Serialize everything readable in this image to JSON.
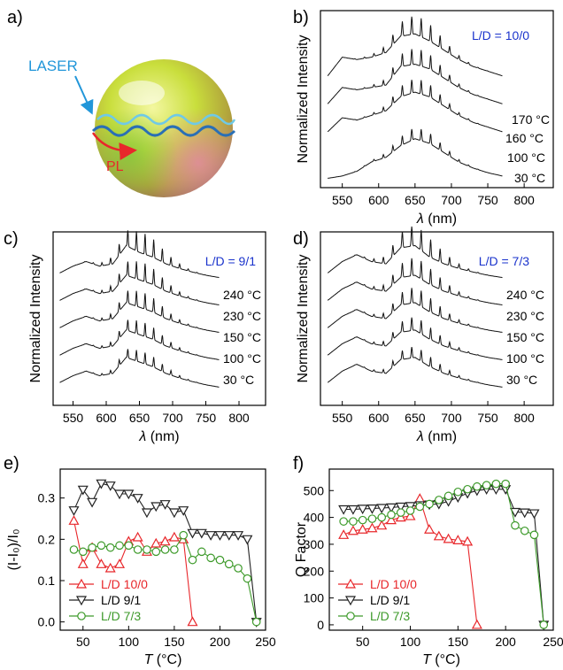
{
  "panels": {
    "a": {
      "label": "a)",
      "laser_text": "LASER",
      "pl_text": "PL"
    },
    "b": {
      "label": "b)",
      "note": "L/D = 10/0",
      "ylabel": "Normalized Intensity",
      "xlabel_sym": "λ",
      "xlabel_unit": " (nm)",
      "xticks": [
        "550",
        "600",
        "650",
        "700",
        "750",
        "800"
      ],
      "temps": [
        "170 °C",
        "160 °C",
        "100 °C",
        "30 °C"
      ]
    },
    "c": {
      "label": "c)",
      "note": "L/D = 9/1",
      "ylabel": "Normalized Intensity",
      "xlabel_sym": "λ",
      "xlabel_unit": " (nm)",
      "xticks": [
        "550",
        "600",
        "650",
        "700",
        "750",
        "800"
      ],
      "temps": [
        "240 °C",
        "230 °C",
        "150 °C",
        "100 °C",
        "30 °C"
      ]
    },
    "d": {
      "label": "d)",
      "note": "L/D = 7/3",
      "ylabel": "Normalized Intensity",
      "xlabel_sym": "λ",
      "xlabel_unit": " (nm)",
      "xticks": [
        "550",
        "600",
        "650",
        "700",
        "750",
        "800"
      ],
      "temps": [
        "240 °C",
        "230 °C",
        "150 °C",
        "100 °C",
        "30 °C"
      ]
    },
    "e": {
      "label": "e)",
      "ylabel": "(I-I₀)/I₀",
      "xlabel_sym": "T",
      "xlabel_unit": " (°C)",
      "xticks": [
        "50",
        "100",
        "150",
        "200",
        "250"
      ],
      "yticks": [
        "0.0",
        "0.1",
        "0.2",
        "0.3"
      ],
      "legend": [
        "L/D 10/0",
        "L/D 9/1",
        "L/D 7/3"
      ]
    },
    "f": {
      "label": "f)",
      "ylabel": "Q Factor",
      "xlabel_sym": "T",
      "xlabel_unit": " (°C)",
      "xticks": [
        "50",
        "100",
        "150",
        "200",
        "250"
      ],
      "yticks": [
        "0",
        "100",
        "200",
        "300",
        "400",
        "500"
      ],
      "legend": [
        "L/D 10/0",
        "L/D 9/1",
        "L/D 7/3"
      ]
    }
  },
  "colors": {
    "note": "#1a33cc",
    "red": "#e8272b",
    "black": "#222222",
    "green": "#3d9a2a",
    "laser": "#2196d9"
  },
  "chart_data": [
    {
      "type": "line",
      "panel": "b",
      "xlabel": "λ (nm)",
      "ylabel": "Normalized Intensity",
      "xlim": [
        520,
        840
      ],
      "series": [
        {
          "name": "30 °C",
          "x": [
            530,
            550,
            570,
            590,
            610,
            630,
            650,
            670,
            690,
            710,
            730,
            750,
            770
          ],
          "y": [
            0.0,
            0.05,
            0.15,
            0.35,
            0.45,
            0.7,
            0.85,
            0.75,
            0.55,
            0.35,
            0.22,
            0.12,
            0.05
          ]
        },
        {
          "name": "100 °C",
          "x": [
            530,
            550,
            570,
            590,
            610,
            630,
            650,
            670,
            690,
            710,
            730,
            750,
            770
          ],
          "y": [
            1.0,
            1.3,
            1.25,
            1.35,
            1.45,
            1.75,
            1.85,
            1.75,
            1.55,
            1.35,
            1.2,
            1.1,
            1.0
          ]
        },
        {
          "name": "160 °C",
          "x": [
            530,
            550,
            570,
            590,
            610,
            630,
            650,
            670,
            690,
            710,
            730,
            750,
            770
          ],
          "y": [
            1.6,
            1.95,
            1.9,
            1.95,
            2.0,
            2.4,
            2.45,
            2.35,
            2.15,
            1.95,
            1.8,
            1.7,
            1.6
          ]
        },
        {
          "name": "170 °C",
          "x": [
            530,
            550,
            570,
            590,
            610,
            630,
            650,
            670,
            690,
            710,
            730,
            750,
            770
          ],
          "y": [
            2.2,
            2.6,
            2.55,
            2.6,
            2.7,
            3.05,
            3.1,
            2.95,
            2.75,
            2.55,
            2.4,
            2.3,
            2.2
          ]
        }
      ]
    },
    {
      "type": "line",
      "panel": "c",
      "xlabel": "λ (nm)",
      "ylabel": "Normalized Intensity",
      "xlim": [
        520,
        840
      ],
      "series": [
        {
          "name": "30 °C",
          "x": [
            530,
            550,
            570,
            590,
            610,
            630,
            650,
            670,
            690,
            710,
            730,
            750,
            770
          ],
          "y": [
            0.3,
            0.45,
            0.55,
            0.45,
            0.5,
            0.85,
            0.75,
            0.65,
            0.5,
            0.4,
            0.32,
            0.25,
            0.2
          ]
        },
        {
          "name": "100 °C",
          "x": [
            530,
            550,
            570,
            590,
            610,
            630,
            650,
            670,
            690,
            710,
            730,
            750,
            770
          ],
          "y": [
            0.9,
            1.05,
            1.15,
            1.05,
            1.1,
            1.45,
            1.35,
            1.25,
            1.1,
            1.0,
            0.92,
            0.85,
            0.8
          ]
        },
        {
          "name": "150 °C",
          "x": [
            530,
            550,
            570,
            590,
            610,
            630,
            650,
            670,
            690,
            710,
            730,
            750,
            770
          ],
          "y": [
            1.5,
            1.65,
            1.75,
            1.65,
            1.7,
            2.05,
            1.95,
            1.85,
            1.7,
            1.6,
            1.52,
            1.45,
            1.4
          ]
        },
        {
          "name": "230 °C",
          "x": [
            530,
            550,
            570,
            590,
            610,
            630,
            650,
            670,
            690,
            710,
            730,
            750,
            770
          ],
          "y": [
            2.1,
            2.25,
            2.35,
            2.25,
            2.3,
            2.65,
            2.55,
            2.45,
            2.3,
            2.2,
            2.12,
            2.05,
            2.0
          ]
        },
        {
          "name": "240 °C",
          "x": [
            530,
            550,
            570,
            590,
            610,
            630,
            650,
            670,
            690,
            710,
            730,
            750,
            770
          ],
          "y": [
            2.7,
            2.85,
            2.95,
            2.85,
            2.9,
            3.3,
            3.15,
            3.05,
            2.9,
            2.8,
            2.72,
            2.65,
            2.6
          ]
        }
      ]
    },
    {
      "type": "line",
      "panel": "d",
      "xlabel": "λ (nm)",
      "ylabel": "Normalized Intensity",
      "xlim": [
        520,
        840
      ],
      "series": [
        {
          "name": "30 °C",
          "x": [
            530,
            550,
            570,
            590,
            610,
            630,
            650,
            670,
            690,
            710,
            730,
            750,
            770
          ],
          "y": [
            0.3,
            0.55,
            0.7,
            0.55,
            0.5,
            0.8,
            0.85,
            0.65,
            0.5,
            0.4,
            0.32,
            0.25,
            0.2
          ]
        },
        {
          "name": "100 °C",
          "x": [
            530,
            550,
            570,
            590,
            610,
            630,
            650,
            670,
            690,
            710,
            730,
            750,
            770
          ],
          "y": [
            0.9,
            1.15,
            1.3,
            1.15,
            1.1,
            1.4,
            1.45,
            1.25,
            1.1,
            1.0,
            0.92,
            0.85,
            0.8
          ]
        },
        {
          "name": "150 °C",
          "x": [
            530,
            550,
            570,
            590,
            610,
            630,
            650,
            670,
            690,
            710,
            730,
            750,
            770
          ],
          "y": [
            1.5,
            1.75,
            1.9,
            1.75,
            1.7,
            2.0,
            2.05,
            1.85,
            1.7,
            1.6,
            1.52,
            1.45,
            1.4
          ]
        },
        {
          "name": "230 °C",
          "x": [
            530,
            550,
            570,
            590,
            610,
            630,
            650,
            670,
            690,
            710,
            730,
            750,
            770
          ],
          "y": [
            2.1,
            2.35,
            2.5,
            2.35,
            2.3,
            2.6,
            2.65,
            2.45,
            2.3,
            2.2,
            2.12,
            2.05,
            2.0
          ]
        },
        {
          "name": "240 °C",
          "x": [
            530,
            550,
            570,
            590,
            610,
            630,
            650,
            670,
            690,
            710,
            730,
            750,
            770
          ],
          "y": [
            2.7,
            2.95,
            3.1,
            2.95,
            2.9,
            3.25,
            3.3,
            3.05,
            2.9,
            2.8,
            2.72,
            2.65,
            2.6
          ]
        }
      ]
    },
    {
      "type": "scatter",
      "panel": "e",
      "xlabel": "T (°C)",
      "ylabel": "(I-I₀)/I₀",
      "xlim": [
        25,
        250
      ],
      "ylim": [
        -0.02,
        0.37
      ],
      "legend_position": "bottom-left",
      "series": [
        {
          "name": "L/D 10/0",
          "marker": "triangle-up",
          "x": [
            40,
            50,
            60,
            70,
            80,
            90,
            100,
            110,
            120,
            130,
            140,
            150,
            160,
            170
          ],
          "y": [
            0.245,
            0.14,
            0.18,
            0.14,
            0.13,
            0.14,
            0.195,
            0.205,
            0.17,
            0.19,
            0.195,
            0.205,
            0.2,
            0.0
          ]
        },
        {
          "name": "L/D 9/1",
          "marker": "triangle-down",
          "x": [
            40,
            50,
            60,
            70,
            80,
            90,
            100,
            110,
            120,
            130,
            140,
            150,
            160,
            170,
            180,
            190,
            200,
            210,
            220,
            230,
            240
          ],
          "y": [
            0.27,
            0.32,
            0.29,
            0.335,
            0.33,
            0.31,
            0.31,
            0.3,
            0.265,
            0.28,
            0.285,
            0.265,
            0.27,
            0.215,
            0.215,
            0.21,
            0.21,
            0.21,
            0.21,
            0.2,
            0.0
          ]
        },
        {
          "name": "L/D 7/3",
          "marker": "circle",
          "x": [
            40,
            50,
            60,
            70,
            80,
            90,
            100,
            110,
            120,
            130,
            140,
            150,
            160,
            170,
            180,
            190,
            200,
            210,
            220,
            230,
            240
          ],
          "y": [
            0.175,
            0.17,
            0.18,
            0.185,
            0.18,
            0.185,
            0.185,
            0.175,
            0.175,
            0.17,
            0.175,
            0.175,
            0.21,
            0.15,
            0.17,
            0.155,
            0.15,
            0.14,
            0.13,
            0.105,
            0.0
          ]
        }
      ]
    },
    {
      "type": "scatter",
      "panel": "f",
      "xlabel": "T (°C)",
      "ylabel": "Q Factor",
      "xlim": [
        15,
        250
      ],
      "ylim": [
        -20,
        580
      ],
      "legend_position": "bottom-left",
      "series": [
        {
          "name": "L/D 10/0",
          "marker": "triangle-up",
          "x": [
            30,
            40,
            50,
            60,
            70,
            80,
            90,
            100,
            110,
            120,
            130,
            140,
            150,
            160,
            170
          ],
          "y": [
            335,
            350,
            355,
            360,
            370,
            390,
            400,
            405,
            470,
            355,
            330,
            320,
            315,
            310,
            0
          ]
        },
        {
          "name": "L/D 9/1",
          "marker": "triangle-down",
          "x": [
            30,
            40,
            50,
            60,
            70,
            80,
            90,
            100,
            110,
            120,
            130,
            140,
            150,
            160,
            170,
            180,
            190,
            200,
            210,
            220,
            230,
            240
          ],
          "y": [
            430,
            430,
            432,
            433,
            435,
            437,
            440,
            442,
            445,
            448,
            450,
            460,
            475,
            490,
            500,
            505,
            505,
            505,
            420,
            418,
            415,
            0
          ]
        },
        {
          "name": "L/D 7/3",
          "marker": "circle",
          "x": [
            30,
            40,
            50,
            60,
            70,
            80,
            90,
            100,
            110,
            120,
            130,
            140,
            150,
            160,
            170,
            180,
            190,
            200,
            210,
            220,
            230,
            240
          ],
          "y": [
            385,
            385,
            390,
            395,
            400,
            410,
            418,
            425,
            440,
            450,
            465,
            480,
            495,
            505,
            515,
            520,
            525,
            525,
            370,
            350,
            335,
            0
          ]
        }
      ]
    }
  ]
}
